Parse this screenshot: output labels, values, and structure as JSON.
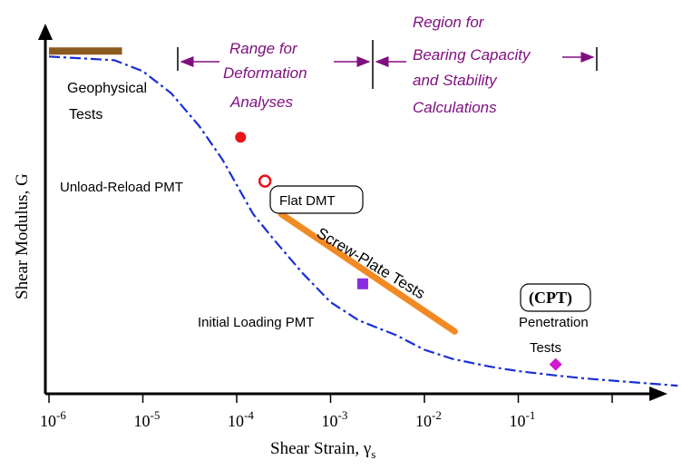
{
  "chart_data": {
    "type": "line",
    "title": "",
    "xlabel": "Shear Strain, γ",
    "xlabel_subscript": "s",
    "ylabel": "Shear Modulus, G",
    "xscale": "log",
    "xlim": [
      1e-06,
      10
    ],
    "x_tick_labels": [
      {
        "base": "10",
        "exp": "-6"
      },
      {
        "base": "10",
        "exp": "-5"
      },
      {
        "base": "10",
        "exp": "-4"
      },
      {
        "base": "10",
        "exp": "-3"
      },
      {
        "base": "10",
        "exp": "-2"
      },
      {
        "base": "10",
        "exp": "-1"
      }
    ],
    "grid": false,
    "curve_color": "#1a2fd6",
    "series": [
      {
        "x": [
          1e-06,
          5e-06,
          1e-05,
          2e-05,
          4e-05,
          7e-05,
          0.0001,
          0.00015,
          0.00025,
          0.0005,
          0.001,
          0.002,
          0.005,
          0.01,
          0.02,
          0.05,
          0.1,
          0.25,
          0.5,
          1,
          2,
          5
        ],
        "y": [
          0.92,
          0.91,
          0.88,
          0.82,
          0.73,
          0.64,
          0.57,
          0.49,
          0.42,
          0.33,
          0.25,
          0.2,
          0.16,
          0.12,
          0.095,
          0.074,
          0.062,
          0.05,
          0.042,
          0.036,
          0.03,
          0.022
        ]
      }
    ],
    "ranges": [
      {
        "label": "Range for Deformation Analyses",
        "from": 2e-05,
        "to": 0.002
      },
      {
        "label": "Region for Bearing Capacity and Stability Calculations",
        "from": 0.002,
        "to": 1
      }
    ],
    "annotations": [
      {
        "name": "geophysical-tests",
        "text_lines": [
          "Geophysical",
          "Tests"
        ],
        "marker": "bar",
        "color": "#8b5a1e",
        "x_from": 1e-06,
        "x_to": 6e-06,
        "y": 0.935
      },
      {
        "name": "unload-reload-pmt",
        "text_lines": [
          "Unload-Reload PMT"
        ],
        "marker": "circle",
        "color": "#e8141a",
        "x": 0.00011,
        "y": 0.7
      },
      {
        "name": "flat-dmt",
        "text_lines": [
          "Flat DMT"
        ],
        "marker": "open-circle",
        "color": "#e8141a",
        "x": 0.0002,
        "y": 0.58
      },
      {
        "name": "screw-plate-tests",
        "text_lines": [
          "Screw-Plate Tests"
        ],
        "marker": "band",
        "color": "#f28a24",
        "x_from": 0.0003,
        "x_to": 0.021,
        "y_from": 0.49,
        "y_to": 0.17
      },
      {
        "name": "initial-loading-pmt",
        "text_lines": [
          "Initial Loading PMT"
        ],
        "marker": "square",
        "color": "#8a2be2",
        "x": 0.0022,
        "y": 0.3
      },
      {
        "name": "penetration-tests",
        "text_lines": [
          "(CPT)",
          "Penetration",
          "Tests"
        ],
        "marker": "diamond",
        "color": "#d11ad1",
        "x": 0.25,
        "y": 0.08
      }
    ],
    "range_label_color": "#7f0f7f"
  },
  "labels": {
    "range1_line1": "Range for",
    "range1_line2": "Deformation",
    "range1_line3": "Analyses",
    "range2_line1": "Region for",
    "range2_line2": "Bearing Capacity",
    "range2_line3": "and Stability",
    "range2_line4": "Calculations",
    "geophysical_line1": "Geophysical",
    "geophysical_line2": "Tests",
    "unload_reload": "Unload-Reload PMT",
    "flat_dmt": "Flat DMT",
    "screw_plate": "Screw-Plate Tests",
    "initial_loading": "Initial Loading PMT",
    "cpt": "(CPT)",
    "penetration_line1": "Penetration",
    "penetration_line2": "Tests",
    "ylabel": "Shear Modulus, G",
    "xlabel": "Shear Strain, γ",
    "xlabel_sub": "s"
  }
}
